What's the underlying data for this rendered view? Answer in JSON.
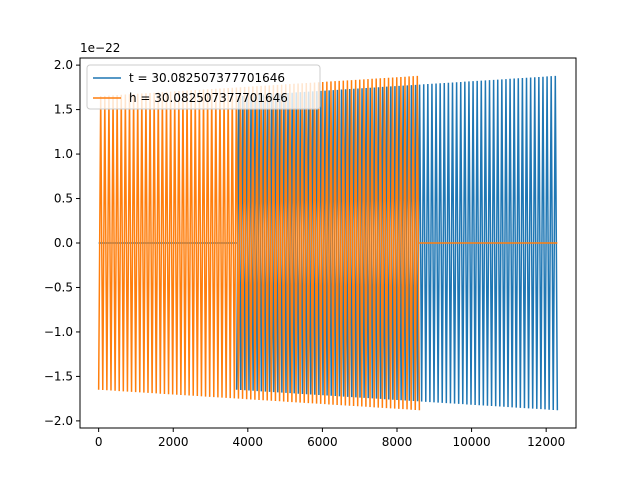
{
  "chart_data": {
    "type": "line",
    "title": "",
    "xlabel": "",
    "ylabel": "",
    "y_offset_text": "1e−22",
    "xlim": [
      -500,
      12800
    ],
    "ylim": [
      -2.08,
      2.08
    ],
    "xticks": [
      0,
      2000,
      4000,
      6000,
      8000,
      10000,
      12000
    ],
    "xtick_labels": [
      "0",
      "2000",
      "4000",
      "6000",
      "8000",
      "10000",
      "12000"
    ],
    "yticks": [
      -2.0,
      -1.5,
      -1.0,
      -0.5,
      0.0,
      0.5,
      1.0,
      1.5,
      2.0
    ],
    "ytick_labels": [
      "−2.0",
      "−1.5",
      "−1.0",
      "−0.5",
      "0.0",
      "0.5",
      "1.0",
      "1.5",
      "2.0"
    ],
    "grid": false,
    "legend_position": "top-left",
    "series": [
      {
        "name": "t = 30.082507377701646",
        "color": "#1f77b4",
        "segments": [
          {
            "x_start": 0,
            "x_end": 3700,
            "flat": true,
            "value": 0.0
          },
          {
            "x_start": 3700,
            "x_end": 12300,
            "flat": false,
            "amp_start": 1.65,
            "amp_end": 1.88,
            "cycles": 78
          }
        ]
      },
      {
        "name": "h = 30.082507377701646",
        "color": "#ff7f0e",
        "segments": [
          {
            "x_start": 0,
            "x_end": 8600,
            "flat": false,
            "amp_start": 1.65,
            "amp_end": 1.88,
            "cycles": 78
          },
          {
            "x_start": 8600,
            "x_end": 12300,
            "flat": true,
            "value": 0.0
          }
        ]
      }
    ]
  }
}
